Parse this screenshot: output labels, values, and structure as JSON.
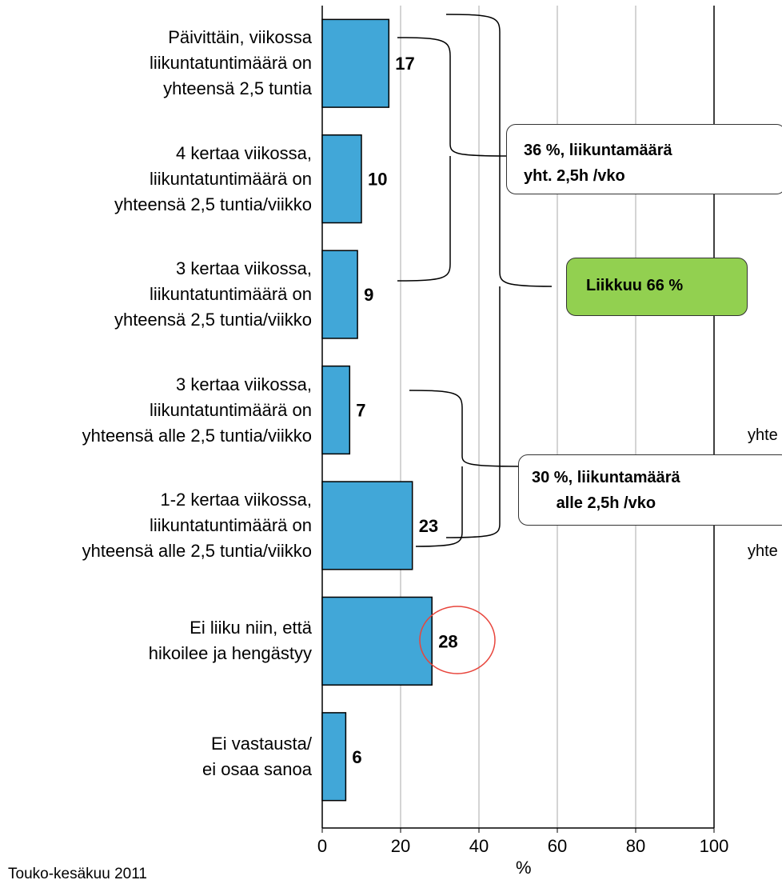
{
  "chart_data": {
    "type": "barh",
    "categories": [
      "Päivittäin, viikossa\nliikuntatuntimäärä on\nyhteensä 2,5 tuntia",
      "4 kertaa viikossa,\nliikuntatuntimäärä on\nyhteensä 2,5 tuntia/viikko",
      "3 kertaa viikossa,\nliikuntatuntimäärä on\nyhteensä 2,5 tuntia/viikko",
      "3 kertaa viikossa,\nliikuntatuntimäärä on\nyhteensä alle 2,5 tuntia/viikko",
      "1-2 kertaa viikossa,\nliikuntatuntimäärä on\nyhteensä alle 2,5 tuntia/viikko",
      "Ei liiku niin, että\nhikoilee ja hengästyy",
      "Ei vastausta/\nei osaa sanoa"
    ],
    "values": [
      17,
      10,
      9,
      7,
      23,
      28,
      6
    ],
    "color": "#41a7d8",
    "xlim": [
      0,
      100
    ],
    "xticks": [
      0,
      20,
      40,
      60,
      80,
      100
    ],
    "grid": true,
    "x_label": "%",
    "annotations": [
      "36 %, liikuntamäärä\nyht. 2,5h /vko",
      "Liikkuu 66 %",
      "30 %, liikuntamäärä\nalle 2,5h /vko",
      "yhte",
      "yhte"
    ],
    "footnote": "Touko-kesäkuu 2011"
  }
}
